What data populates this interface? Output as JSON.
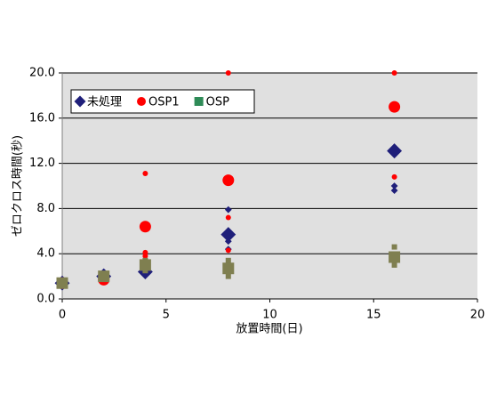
{
  "chart_data": {
    "type": "scatter",
    "xlabel": "放置時間(日)",
    "ylabel": "ゼロクロス時間(秒)",
    "xlim": [
      0,
      20
    ],
    "xticks": [
      0,
      5,
      10,
      15,
      20
    ],
    "ylim": [
      0,
      20
    ],
    "yticks": [
      {
        "value": 0,
        "label": "0.0"
      },
      {
        "value": 4,
        "label": "4.0"
      },
      {
        "value": 8,
        "label": "8.0"
      },
      {
        "value": 12,
        "label": "12.0"
      },
      {
        "value": 16,
        "label": "16.0"
      },
      {
        "value": 20,
        "label": "20.0"
      }
    ],
    "grid": true,
    "legend": "upper left",
    "series": [
      {
        "name": "未処理",
        "marker": "diamond",
        "color": "#1f1f7a",
        "legend_color": "#1f1f7a",
        "text_color": "#000000",
        "x": [
          2,
          4,
          4,
          8,
          8,
          8,
          16,
          16
        ],
        "values": [
          2.4,
          2.6,
          3.0,
          7.9,
          5.1,
          4.4,
          10.0,
          9.6
        ],
        "mean_x": [
          0,
          2,
          4,
          8,
          16
        ],
        "mean_values": [
          1.4,
          2.0,
          2.4,
          5.7,
          13.1
        ]
      },
      {
        "name": "OSP1",
        "marker": "circle",
        "color": "#ff0000",
        "legend_color": "#ff0000",
        "text_color": "#e03030",
        "x": [
          4,
          4,
          4,
          8,
          8,
          8,
          16,
          16
        ],
        "values": [
          11.1,
          4.1,
          3.8,
          20.0,
          7.2,
          4.3,
          20.0,
          10.8
        ],
        "mean_x": [
          0,
          2,
          4,
          8,
          16
        ],
        "mean_values": [
          1.4,
          1.7,
          6.4,
          10.5,
          17.0
        ]
      },
      {
        "name": "OSP",
        "marker": "square",
        "color": "#7f7f50",
        "legend_color": "#2e8b57",
        "text_color": "#2e8b57",
        "x": [
          4,
          4,
          8,
          8,
          16,
          16
        ],
        "values": [
          3.4,
          2.5,
          3.4,
          2.0,
          4.6,
          3.0
        ],
        "mean_x": [
          0,
          2,
          4,
          8,
          16
        ],
        "mean_values": [
          1.4,
          2.0,
          3.0,
          2.7,
          3.7
        ]
      }
    ]
  }
}
